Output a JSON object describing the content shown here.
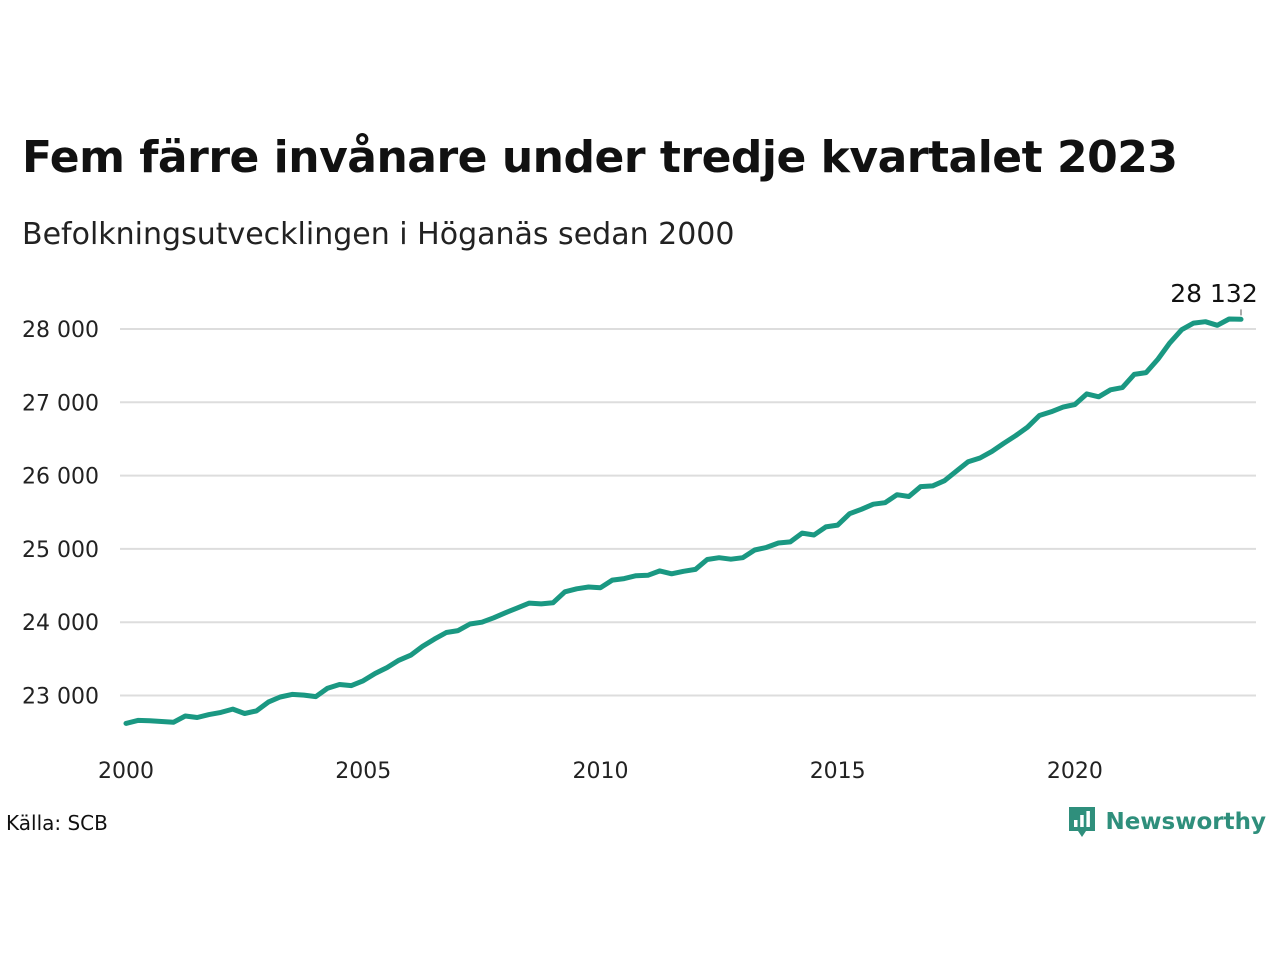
{
  "header": {
    "title": "Fem färre invånare under tredje kvartalet 2023",
    "subtitle": "Befolkningsutvecklingen i Höganäs sedan 2000"
  },
  "footer": {
    "source": "Källa: SCB",
    "brand": "Newsworthy",
    "brand_icon": "newsworthy-bar-chart-icon"
  },
  "colors": {
    "line": "#1a9882",
    "grid": "#dddddd",
    "brand": "#2f8f7c"
  },
  "chart_data": {
    "type": "line",
    "title": "Fem färre invånare under tredje kvartalet 2023",
    "subtitle": "Befolkningsutvecklingen i Höganäs sedan 2000",
    "xlabel": "",
    "ylabel": "",
    "x_ticks": [
      "2000",
      "2005",
      "2010",
      "2015",
      "2020"
    ],
    "y_ticks": [
      "23 000",
      "24 000",
      "25 000",
      "26 000",
      "27 000",
      "28 000"
    ],
    "xlim": [
      2000,
      2024.5
    ],
    "ylim": [
      22300,
      28400
    ],
    "grid": "horizontal",
    "legend": "none",
    "end_label": "28 132",
    "series": [
      {
        "x": [
          2000.0,
          2000.25,
          2000.5,
          2000.75,
          2001.0,
          2001.25,
          2001.5,
          2001.75,
          2002.0,
          2002.25,
          2002.5,
          2002.75,
          2003.0,
          2003.25,
          2003.5,
          2003.75,
          2004.0,
          2004.25,
          2004.5,
          2004.75,
          2005.0,
          2005.25,
          2005.5,
          2005.75,
          2006.0,
          2006.25,
          2006.5,
          2006.75,
          2007.0,
          2007.25,
          2007.5,
          2007.75,
          2008.0,
          2008.25,
          2008.5,
          2008.75,
          2009.0,
          2009.25,
          2009.5,
          2009.75,
          2010.0,
          2010.25,
          2010.5,
          2010.75,
          2011.0,
          2011.25,
          2011.5,
          2011.75,
          2012.0,
          2012.25,
          2012.5,
          2012.75,
          2013.0,
          2013.25,
          2013.5,
          2013.75,
          2014.0,
          2014.25,
          2014.5,
          2014.75,
          2015.0,
          2015.25,
          2015.5,
          2015.75,
          2016.0,
          2016.25,
          2016.5,
          2016.75,
          2017.0,
          2017.25,
          2017.5,
          2017.75,
          2018.0,
          2018.25,
          2018.5,
          2018.75,
          2019.0,
          2019.25,
          2019.5,
          2019.75,
          2020.0,
          2020.25,
          2020.5,
          2020.75,
          2021.0,
          2021.25,
          2021.5,
          2021.75,
          2022.0,
          2022.25,
          2022.5,
          2022.75,
          2023.0,
          2023.25,
          2023.5
        ],
        "values": [
          22620,
          22660,
          22655,
          22645,
          22635,
          22720,
          22700,
          22740,
          22770,
          22815,
          22755,
          22790,
          22910,
          22980,
          23015,
          23005,
          22985,
          23100,
          23150,
          23135,
          23200,
          23300,
          23380,
          23480,
          23550,
          23670,
          23770,
          23860,
          23885,
          23975,
          24000,
          24060,
          24130,
          24195,
          24260,
          24250,
          24265,
          24415,
          24455,
          24480,
          24470,
          24575,
          24595,
          24635,
          24640,
          24700,
          24660,
          24695,
          24720,
          24855,
          24880,
          24860,
          24880,
          24985,
          25020,
          25080,
          25095,
          25215,
          25190,
          25300,
          25325,
          25480,
          25540,
          25610,
          25630,
          25740,
          25715,
          25850,
          25860,
          25930,
          26060,
          26190,
          26240,
          26330,
          26440,
          26545,
          26660,
          26820,
          26870,
          26935,
          26970,
          27115,
          27075,
          27170,
          27200,
          27380,
          27405,
          27590,
          27810,
          27990,
          28080,
          28100,
          28050,
          28137,
          28132
        ]
      }
    ]
  }
}
